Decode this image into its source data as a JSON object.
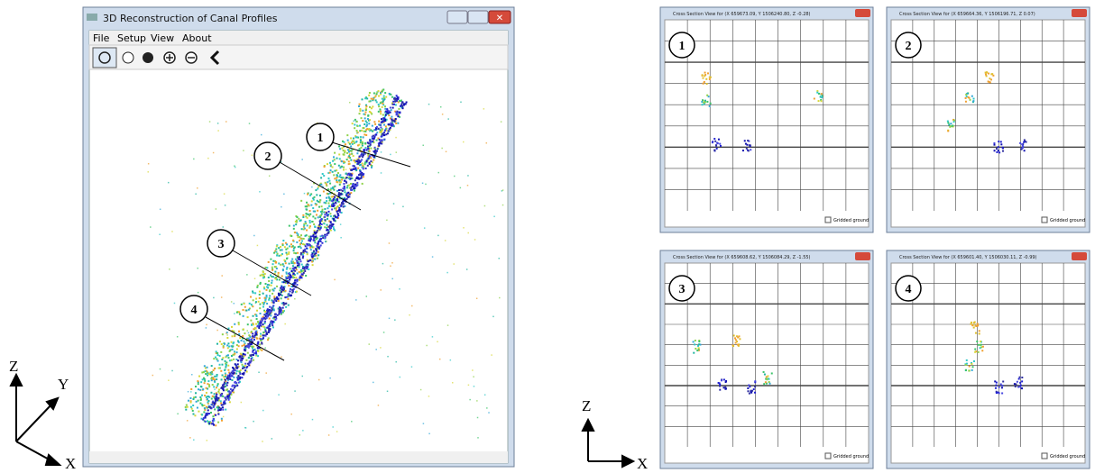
{
  "main_window": {
    "title": "3D Reconstruction of Canal Profiles",
    "menu": [
      "File",
      "Setup",
      "View",
      "About"
    ],
    "callouts": [
      "1",
      "2",
      "3",
      "4"
    ]
  },
  "left_axes": {
    "z": "Z",
    "y": "Y",
    "x": "X"
  },
  "cross_sections": [
    {
      "title": "Cross Section View for (X 659673.09, Y 1506240.80, Z -0.28)",
      "label": "1",
      "checkbox": "Gridded ground"
    },
    {
      "title": "Cross Section View for (X 659664.36, Y 1506196.71, Z 0.07)",
      "label": "2",
      "checkbox": "Gridded ground"
    },
    {
      "title": "Cross Section View for (X 659608.62, Y 1506084.29, Z -1.55)",
      "label": "3",
      "checkbox": "Gridded ground"
    },
    {
      "title": "Cross Section View for (X 659601.40, Y 1506030.11, Z -0.99)",
      "label": "4",
      "checkbox": "Gridded ground"
    }
  ],
  "right_axes": {
    "z": "Z",
    "x": "X"
  }
}
